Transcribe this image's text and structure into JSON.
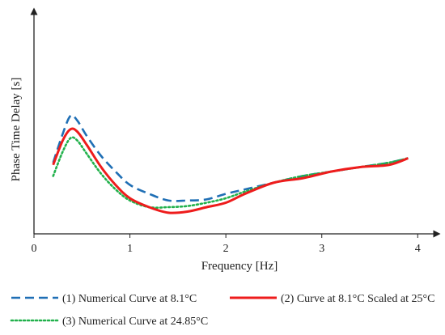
{
  "chart_data": {
    "type": "line",
    "title": "",
    "xlabel": "Frequency [Hz]",
    "ylabel": "Phase Time Delay [s]",
    "xlim": [
      0,
      4.2
    ],
    "ylim": [
      0,
      1
    ],
    "xticks": [
      "0",
      "1",
      "2",
      "3",
      "4"
    ],
    "xtick_values": [
      0,
      1,
      2,
      3,
      4
    ],
    "yticks_shown": false,
    "grid": false,
    "legend_position": "bottom",
    "series": [
      {
        "name": "(1) Numerical Curve at 8.1°C",
        "color": "#1f6fb5",
        "style": "dashed",
        "x": [
          0.2,
          0.3,
          0.38,
          0.45,
          0.55,
          0.7,
          0.85,
          1.0,
          1.2,
          1.4,
          1.6,
          1.8,
          2.0,
          2.2,
          2.5,
          2.8,
          3.1,
          3.4,
          3.7,
          3.9
        ],
        "y": [
          0.32,
          0.45,
          0.53,
          0.51,
          0.44,
          0.35,
          0.28,
          0.22,
          0.18,
          0.15,
          0.15,
          0.155,
          0.18,
          0.2,
          0.23,
          0.26,
          0.28,
          0.3,
          0.32,
          0.34
        ]
      },
      {
        "name": "(2) Curve at 8.1°C Scaled at 25°C",
        "color": "#ee1c1c",
        "style": "solid",
        "x": [
          0.2,
          0.3,
          0.38,
          0.45,
          0.55,
          0.7,
          0.85,
          1.0,
          1.2,
          1.4,
          1.6,
          1.8,
          2.0,
          2.2,
          2.5,
          2.8,
          3.1,
          3.4,
          3.7,
          3.9
        ],
        "y": [
          0.31,
          0.42,
          0.47,
          0.46,
          0.4,
          0.3,
          0.22,
          0.16,
          0.12,
          0.095,
          0.1,
          0.12,
          0.14,
          0.18,
          0.23,
          0.25,
          0.28,
          0.3,
          0.31,
          0.34
        ]
      },
      {
        "name": "(3) Numerical Curve at 24.85°C",
        "color": "#22b14c",
        "style": "dotted",
        "x": [
          0.2,
          0.3,
          0.38,
          0.45,
          0.55,
          0.7,
          0.85,
          1.0,
          1.2,
          1.4,
          1.6,
          1.8,
          2.0,
          2.2,
          2.5,
          2.8,
          3.1,
          3.4,
          3.7,
          3.9
        ],
        "y": [
          0.26,
          0.37,
          0.43,
          0.42,
          0.36,
          0.27,
          0.2,
          0.15,
          0.12,
          0.12,
          0.125,
          0.14,
          0.16,
          0.19,
          0.23,
          0.26,
          0.28,
          0.3,
          0.32,
          0.34
        ]
      }
    ]
  }
}
